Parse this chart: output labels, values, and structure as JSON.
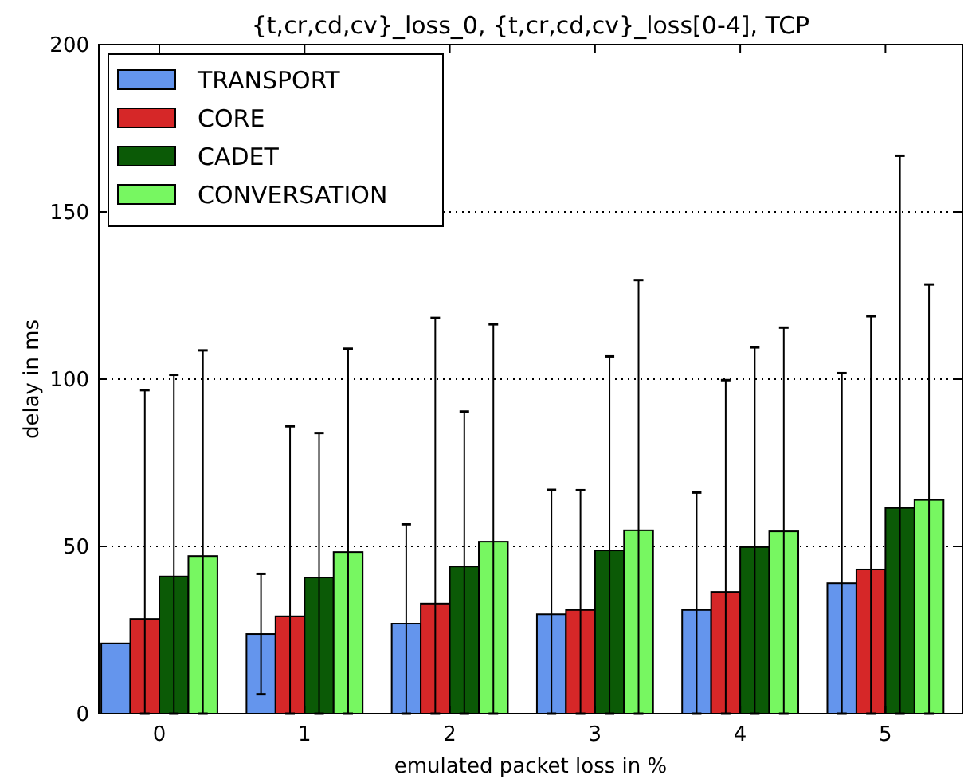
{
  "chart_data": {
    "type": "bar",
    "title": "{t,cr,cd,cv}_loss_0, {t,cr,cd,cv}_loss[0-4], TCP",
    "xlabel": "emulated packet loss in %",
    "ylabel": "delay in ms",
    "categories": [
      "0",
      "1",
      "2",
      "3",
      "4",
      "5"
    ],
    "series": [
      {
        "name": "TRANSPORT",
        "color": "#6495ed",
        "values": [
          21.0,
          23.8,
          26.9,
          29.7,
          31.0,
          39.0
        ],
        "errors": [
          null,
          18,
          [
            0,
            56.6
          ],
          [
            0,
            66.9
          ],
          [
            0,
            66.1
          ],
          [
            0,
            101.8
          ]
        ]
      },
      {
        "name": "CORE",
        "color": "#d62728",
        "values": [
          28.3,
          29.1,
          32.9,
          31.0,
          36.4,
          43.1
        ],
        "errors": [
          [
            0,
            96.7
          ],
          [
            0,
            85.9
          ],
          [
            0,
            118.3
          ],
          [
            0,
            66.8
          ],
          [
            0,
            99.7
          ],
          [
            0,
            118.8
          ]
        ]
      },
      {
        "name": "CADET",
        "color": "#0b5a06",
        "values": [
          41.0,
          40.7,
          44.0,
          48.8,
          49.8,
          61.5
        ],
        "errors": [
          [
            0,
            101.3
          ],
          [
            0,
            83.9
          ],
          [
            0,
            90.3
          ],
          [
            0,
            106.8
          ],
          [
            0,
            109.5
          ],
          [
            0,
            166.8
          ]
        ]
      },
      {
        "name": "CONVERSATION",
        "color": "#77f761",
        "values": [
          47.1,
          48.3,
          51.4,
          54.8,
          54.5,
          63.9
        ],
        "errors": [
          [
            0,
            108.6
          ],
          [
            0,
            109.1
          ],
          [
            0,
            116.4
          ],
          [
            0,
            129.6
          ],
          [
            0,
            115.4
          ],
          [
            0,
            128.3
          ]
        ]
      }
    ],
    "ylim": [
      0,
      200
    ],
    "yticks": [
      0,
      50,
      100,
      150,
      200
    ],
    "grid": "y",
    "legend": "top left"
  }
}
